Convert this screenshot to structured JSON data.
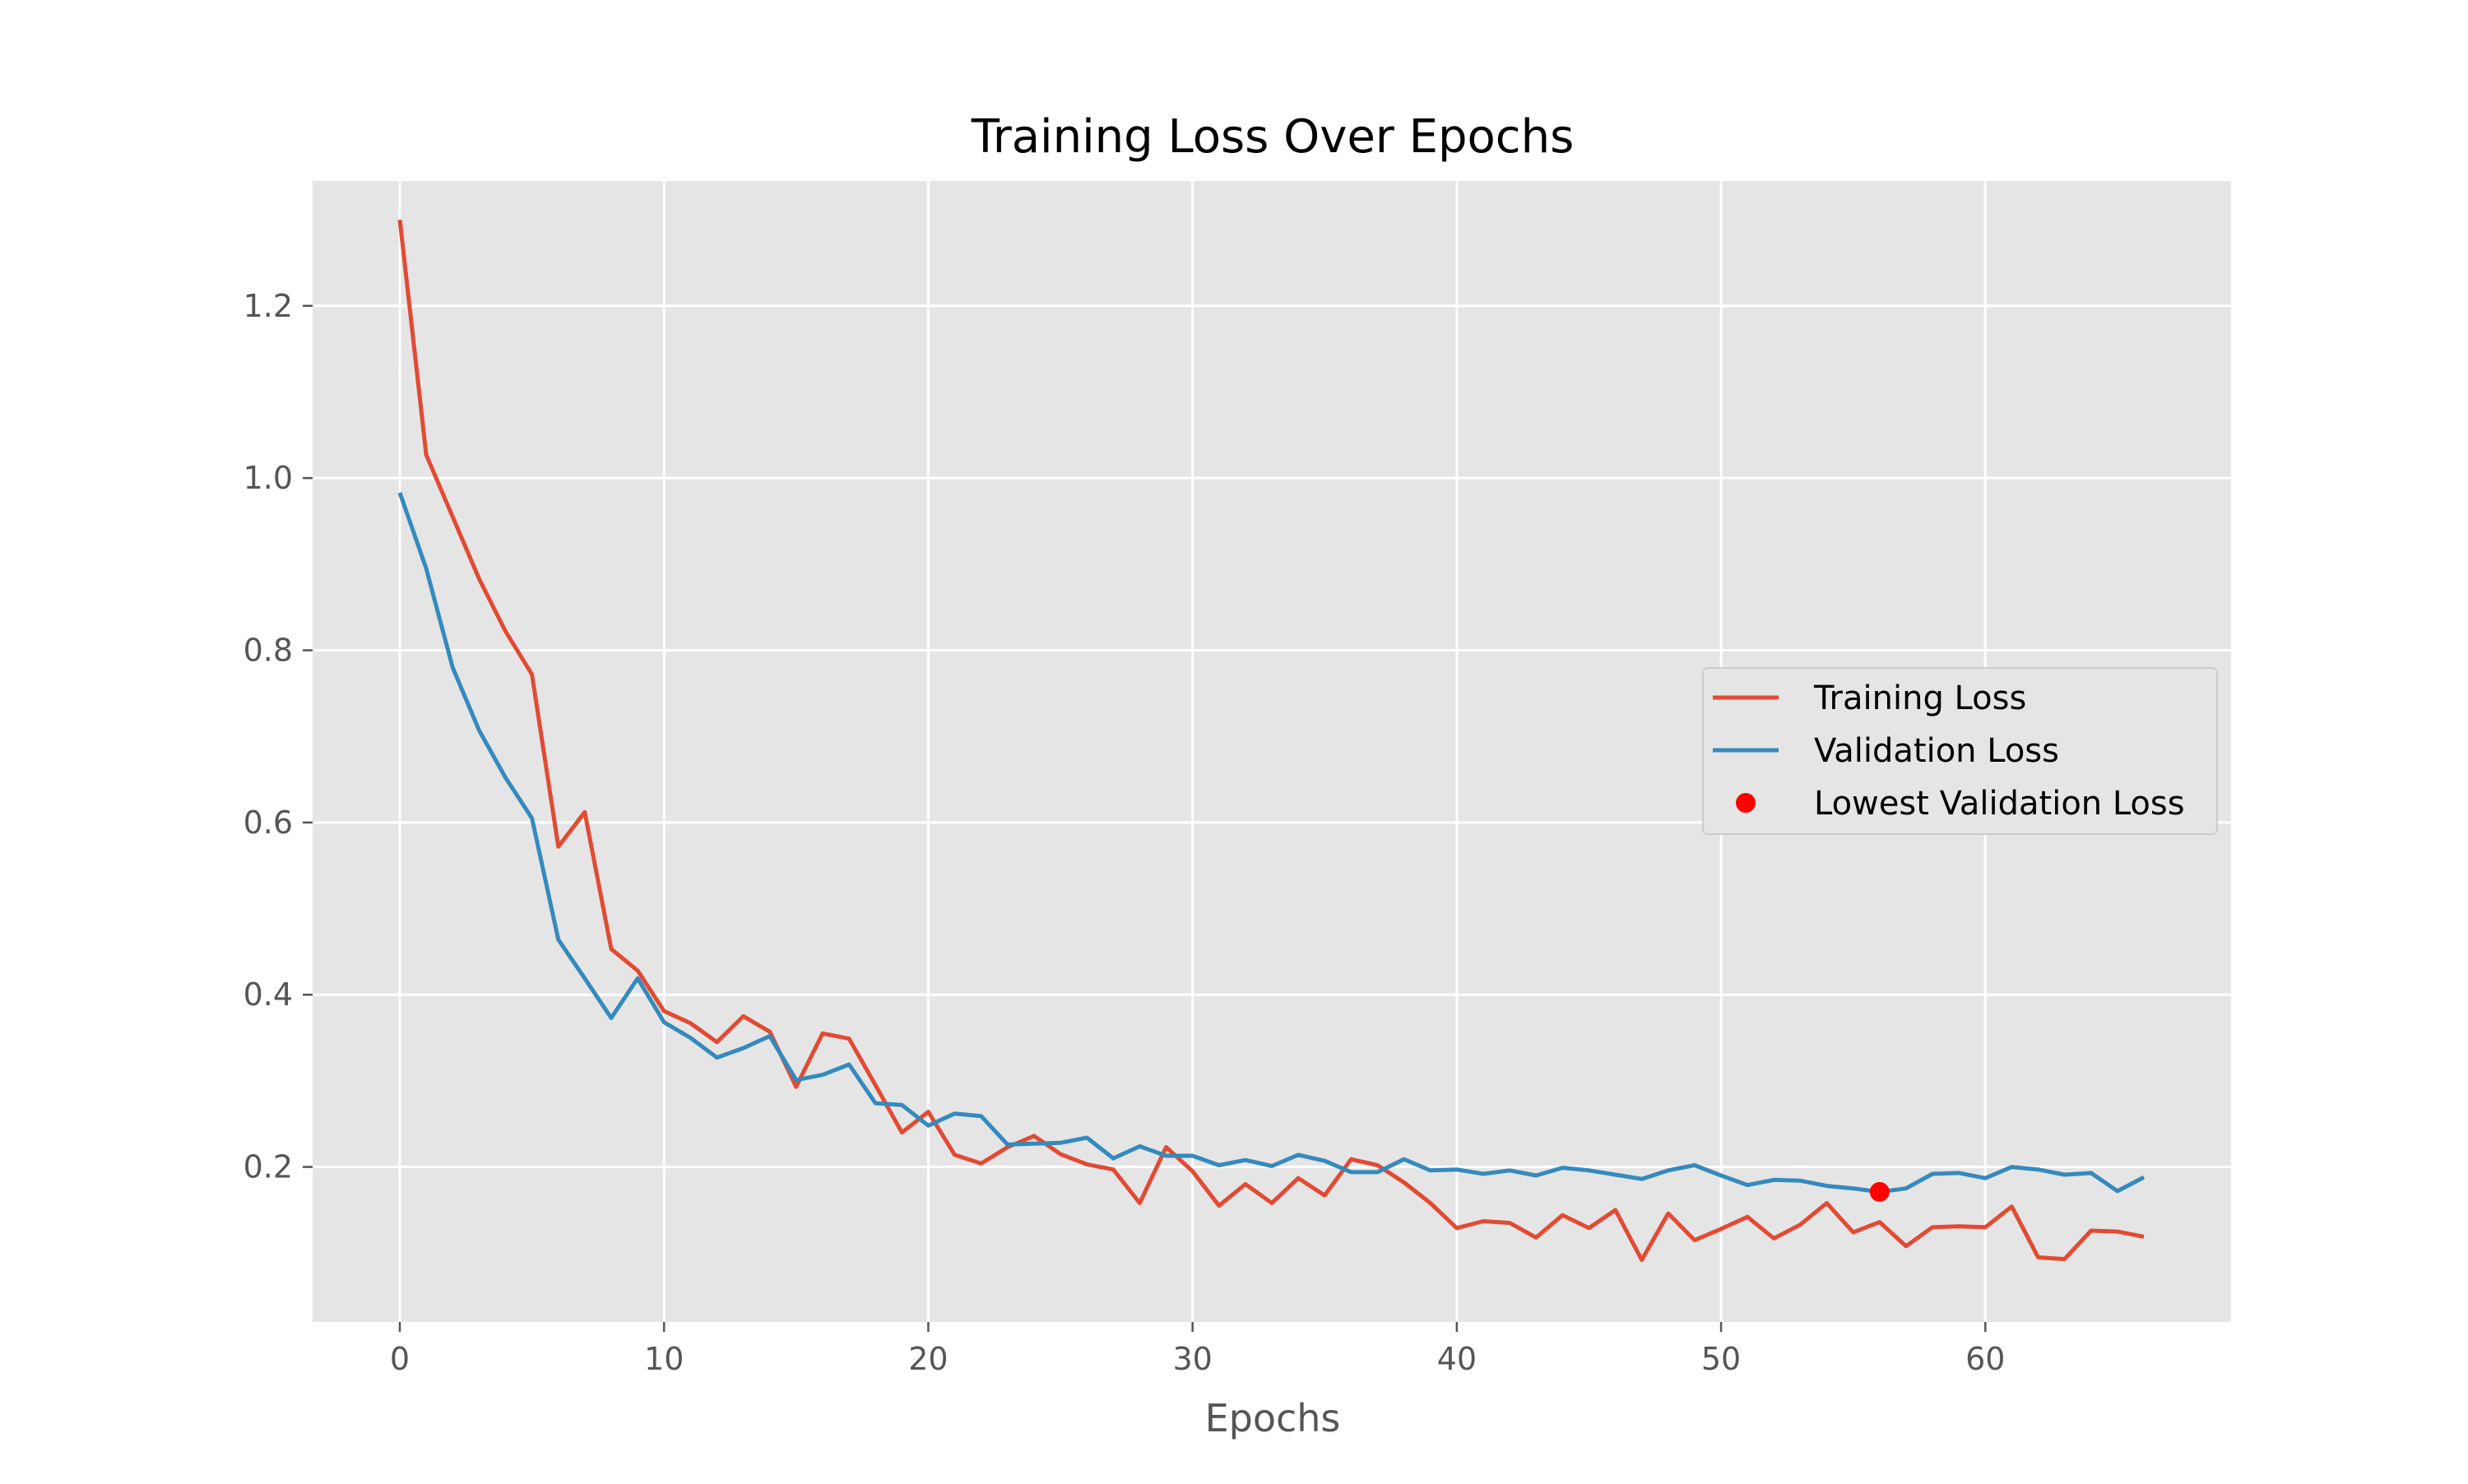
{
  "chart_data": {
    "type": "line",
    "title": "Training Loss Over Epochs",
    "xlabel": "Epochs",
    "ylabel": "",
    "xlim": [
      -3.3,
      69.3
    ],
    "ylim": [
      0.02,
      1.345
    ],
    "xticks": [
      0,
      10,
      20,
      30,
      40,
      50,
      60
    ],
    "yticks": [
      0.2,
      0.4,
      0.6,
      0.8,
      1.0,
      1.2
    ],
    "ytick_labels": [
      "0.2",
      "0.4",
      "0.6",
      "0.8",
      "1.0",
      "1.2"
    ],
    "grid": true,
    "legend_position": "center-right",
    "background_color": "#e5e5e5",
    "x": [
      0,
      1,
      2,
      3,
      4,
      5,
      6,
      7,
      8,
      9,
      10,
      11,
      12,
      13,
      14,
      15,
      16,
      17,
      18,
      19,
      20,
      21,
      22,
      23,
      24,
      25,
      26,
      27,
      28,
      29,
      30,
      31,
      32,
      33,
      34,
      35,
      36,
      37,
      38,
      39,
      40,
      41,
      42,
      43,
      44,
      45,
      46,
      47,
      48,
      49,
      50,
      51,
      52,
      53,
      54,
      55,
      56,
      57,
      58,
      59,
      60,
      61,
      62,
      63,
      64,
      65,
      66
    ],
    "series": [
      {
        "name": "Training Loss",
        "color": "#e24a33",
        "values": [
          1.3,
          1.027,
          0.955,
          0.883,
          0.822,
          0.772,
          0.572,
          0.612,
          0.453,
          0.428,
          0.381,
          0.367,
          0.345,
          0.375,
          0.357,
          0.293,
          0.355,
          0.349,
          0.295,
          0.24,
          0.264,
          0.214,
          0.204,
          0.223,
          0.236,
          0.215,
          0.203,
          0.197,
          0.158,
          0.223,
          0.195,
          0.155,
          0.18,
          0.158,
          0.187,
          0.167,
          0.209,
          0.202,
          0.182,
          0.158,
          0.129,
          0.137,
          0.135,
          0.118,
          0.144,
          0.129,
          0.15,
          0.092,
          0.146,
          0.115,
          0.128,
          0.142,
          0.117,
          0.133,
          0.158,
          0.124,
          0.136,
          0.108,
          0.13,
          0.131,
          0.13,
          0.154,
          0.095,
          0.093,
          0.126,
          0.125,
          0.119
        ]
      },
      {
        "name": "Validation Loss",
        "color": "#348abd",
        "values": [
          0.983,
          0.895,
          0.78,
          0.707,
          0.652,
          0.605,
          0.464,
          0.419,
          0.373,
          0.419,
          0.368,
          0.35,
          0.327,
          0.338,
          0.352,
          0.301,
          0.307,
          0.319,
          0.274,
          0.272,
          0.248,
          0.262,
          0.259,
          0.226,
          0.227,
          0.228,
          0.234,
          0.21,
          0.224,
          0.213,
          0.213,
          0.202,
          0.208,
          0.201,
          0.214,
          0.207,
          0.194,
          0.194,
          0.209,
          0.196,
          0.197,
          0.192,
          0.196,
          0.19,
          0.199,
          0.196,
          0.191,
          0.186,
          0.196,
          0.202,
          0.19,
          0.179,
          0.185,
          0.184,
          0.178,
          0.175,
          0.171,
          0.175,
          0.192,
          0.193,
          0.187,
          0.2,
          0.197,
          0.191,
          0.193,
          0.172,
          0.188
        ]
      }
    ],
    "markers": [
      {
        "name": "Lowest Validation Loss",
        "color": "#ff0000",
        "x": 56,
        "y": 0.171
      }
    ]
  }
}
